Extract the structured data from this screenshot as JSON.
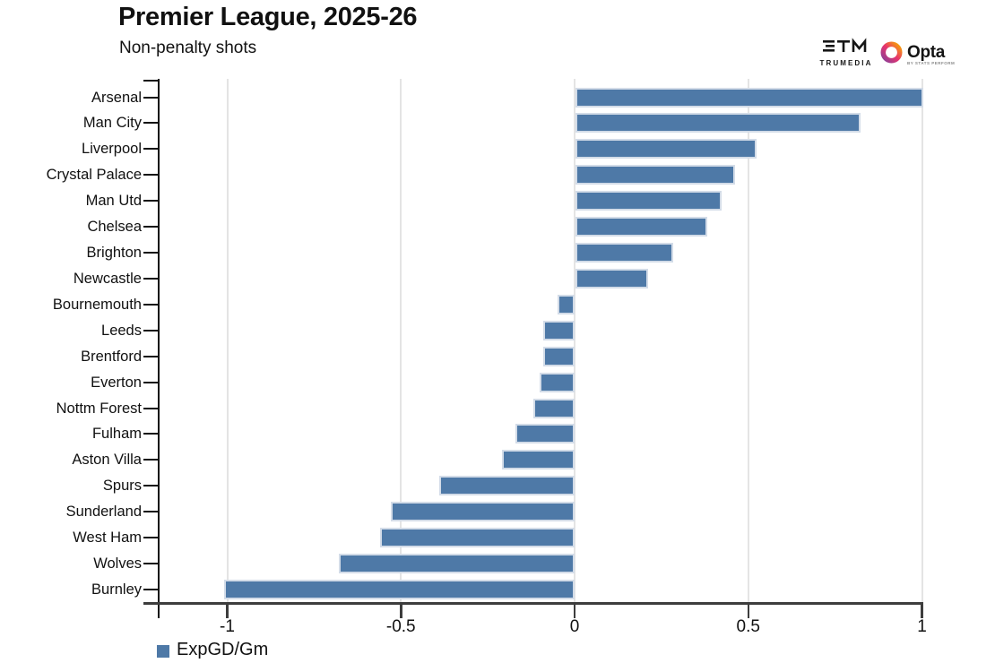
{
  "header": {
    "title": "Premier League, 2025-26",
    "subtitle": "Non-penalty shots"
  },
  "branding": {
    "trumedia_label": "TRUMEDIA",
    "opta_label": "Opta",
    "opta_sublabel": "BY STATS PERFORM"
  },
  "legend": {
    "label": "ExpGD/Gm"
  },
  "chart_data": {
    "type": "bar",
    "orientation": "horizontal",
    "title": "Premier League, 2025-26",
    "subtitle": "Non-penalty shots",
    "series_name": "ExpGD/Gm",
    "categories": [
      "Arsenal",
      "Man City",
      "Liverpool",
      "Crystal Palace",
      "Man Utd",
      "Chelsea",
      "Brighton",
      "Newcastle",
      "Bournemouth",
      "Leeds",
      "Brentford",
      "Everton",
      "Nottm Forest",
      "Fulham",
      "Aston Villa",
      "Spurs",
      "Sunderland",
      "West Ham",
      "Wolves",
      "Burnley"
    ],
    "values": [
      1.0,
      0.82,
      0.52,
      0.46,
      0.42,
      0.38,
      0.28,
      0.21,
      -0.05,
      -0.09,
      -0.09,
      -0.1,
      -0.12,
      -0.17,
      -0.21,
      -0.39,
      -0.53,
      -0.56,
      -0.68,
      -1.01
    ],
    "xticks": [
      -1,
      -0.5,
      0,
      0.5,
      1
    ],
    "xtick_labels": [
      "-1",
      "-0.5",
      "0",
      "0.5",
      "1"
    ],
    "xlim": [
      -1.2,
      1.2
    ],
    "grid": true,
    "legend_position": "bottom-left",
    "colors": {
      "bar_fill": "#4e79a7",
      "bar_border": "#d3dce8",
      "axis": "#3d3d3d",
      "gridline": "#e4e4e4"
    }
  }
}
